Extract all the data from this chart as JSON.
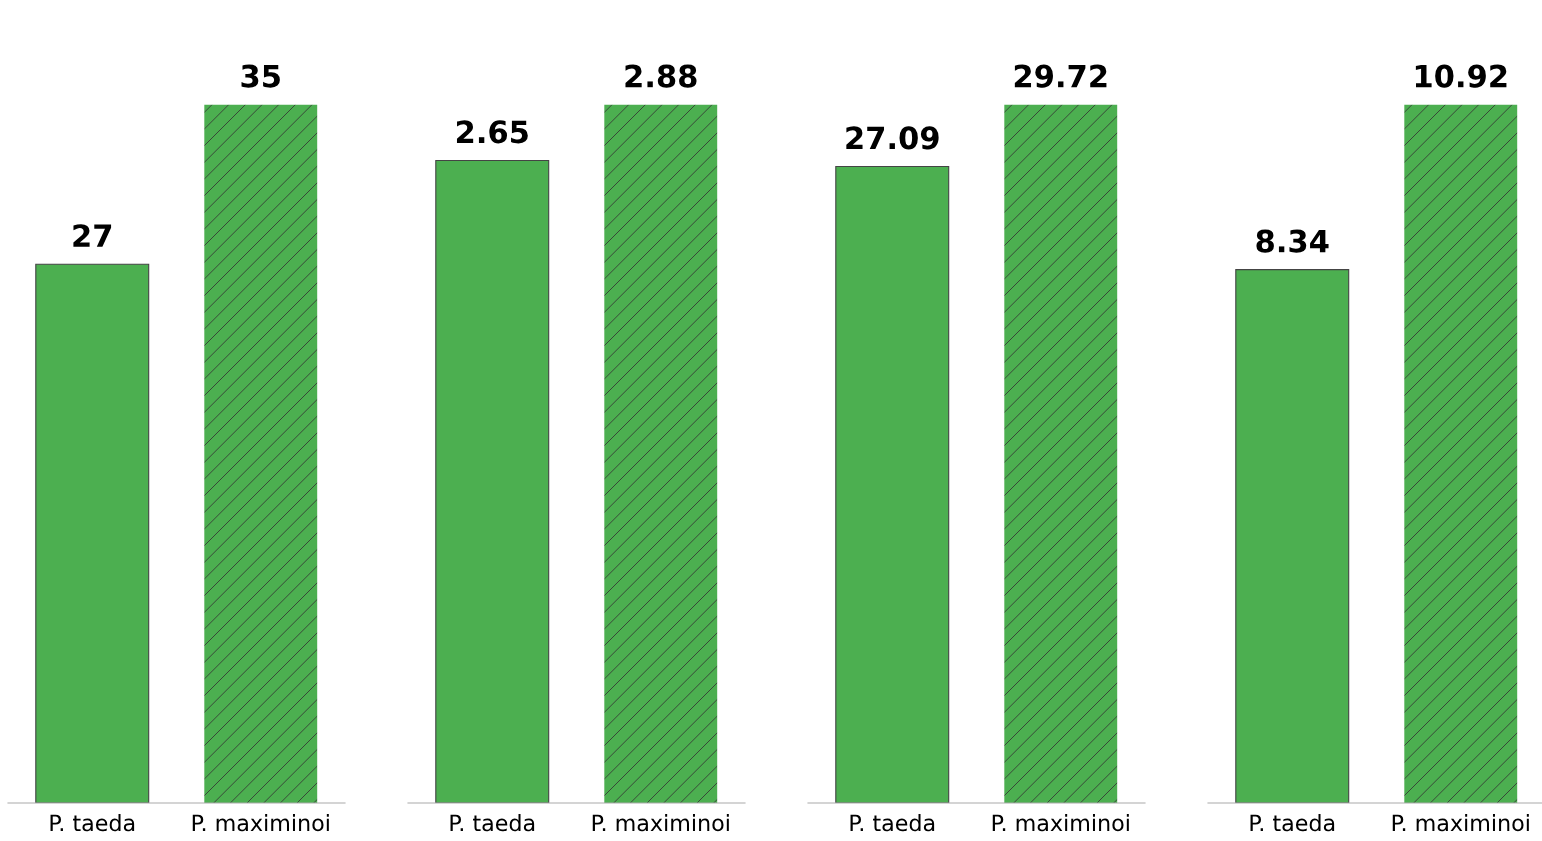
{
  "chart_data": [
    {
      "type": "bar",
      "categories": [
        "P. taeda",
        "P. maximinoi"
      ],
      "data_labels": true,
      "grid": false,
      "legend": false,
      "tick_labels": "x",
      "series": [
        {
          "color": "#4caf50",
          "values": [
            27,
            null
          ]
        },
        {
          "color": "#4caf50",
          "values": [
            null,
            35
          ]
        }
      ]
    },
    {
      "type": "bar",
      "categories": [
        "P. taeda",
        "P. maximinoi"
      ],
      "data_labels": true,
      "grid": false,
      "legend": false,
      "tick_labels": "x",
      "series": [
        {
          "color": "#4caf50",
          "values": [
            2.65,
            null
          ]
        },
        {
          "color": "#4caf50",
          "values": [
            null,
            2.88
          ]
        }
      ]
    },
    {
      "type": "bar",
      "categories": [
        "P. taeda",
        "P. maximinoi"
      ],
      "data_labels": true,
      "grid": false,
      "legend": false,
      "tick_labels": "x",
      "series": [
        {
          "color": "#4caf50",
          "values": [
            27.09,
            null
          ]
        },
        {
          "color": "#4caf50",
          "values": [
            null,
            29.72
          ]
        }
      ]
    },
    {
      "type": "bar",
      "categories": [
        "P. taeda",
        "P. maximinoi"
      ],
      "data_labels": true,
      "grid": false,
      "legend": false,
      "tick_labels": "x",
      "series": [
        {
          "color": "#4caf50",
          "values": [
            8.34,
            null
          ]
        },
        {
          "color": "#4caf50",
          "values": [
            null,
            10.92
          ]
        }
      ]
    }
  ]
}
